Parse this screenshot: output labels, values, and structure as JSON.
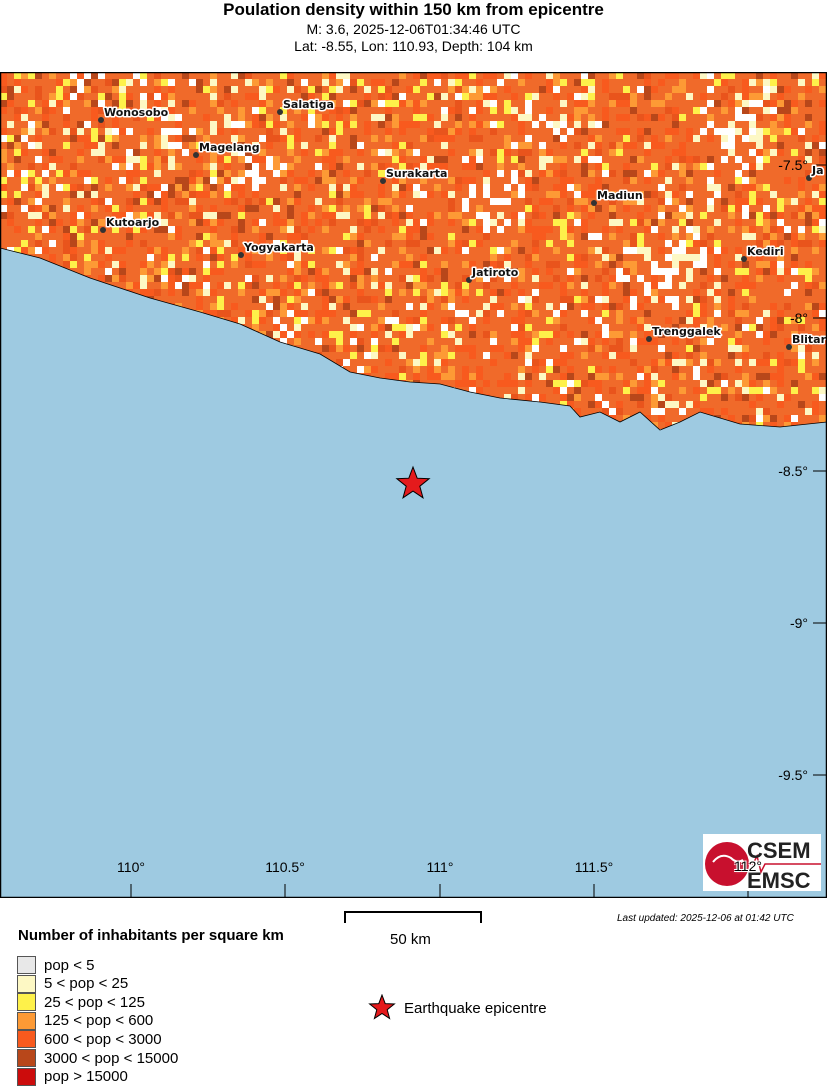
{
  "header": {
    "title": "Poulation density within 150 km from epicentre",
    "subtitle": "M: 3.6,  2025-12-06T01:34:46 UTC",
    "location": "Lat: -8.55, Lon: 110.93, Depth: 104 km"
  },
  "map": {
    "sea_color": "#9ecae1",
    "lat_ticks": [
      "-7.5°",
      "-8°",
      "-8.5°",
      "-9°",
      "-9.5°"
    ],
    "lon_ticks": [
      "110°",
      "110.5°",
      "111°",
      "111.5°",
      "112°"
    ],
    "cities": [
      "Wonosobo",
      "Salatiga",
      "Magelang",
      "Surakarta",
      "Madiun",
      "Ja",
      "Kutoarjo",
      "Yogyakarta",
      "Kediri",
      "Jatiroto",
      "Trenggalek",
      "Blitar"
    ],
    "epicentre_color": "#e41a1c",
    "logo": {
      "text_top": "CSEM",
      "text_bottom": "EMSC"
    }
  },
  "footer": {
    "updated": "Last updated: 2025-12-06 at 01:42 UTC",
    "scale_label": "50 km",
    "epicentre_label": "Earthquake epicentre"
  },
  "legend": {
    "title": "Number of inhabitants per square km",
    "items": [
      {
        "label": "pop < 5",
        "color": "#e8e8e8"
      },
      {
        "label": "5 < pop < 25",
        "color": "#fdf8c4"
      },
      {
        "label": "25 < pop < 125",
        "color": "#fef14a"
      },
      {
        "label": "125 < pop < 600",
        "color": "#fd9a35"
      },
      {
        "label": "600 < pop < 3000",
        "color": "#f85a1e"
      },
      {
        "label": "3000 < pop < 15000",
        "color": "#b8471a"
      },
      {
        "label": "pop > 15000",
        "color": "#cc0c0c"
      }
    ]
  }
}
